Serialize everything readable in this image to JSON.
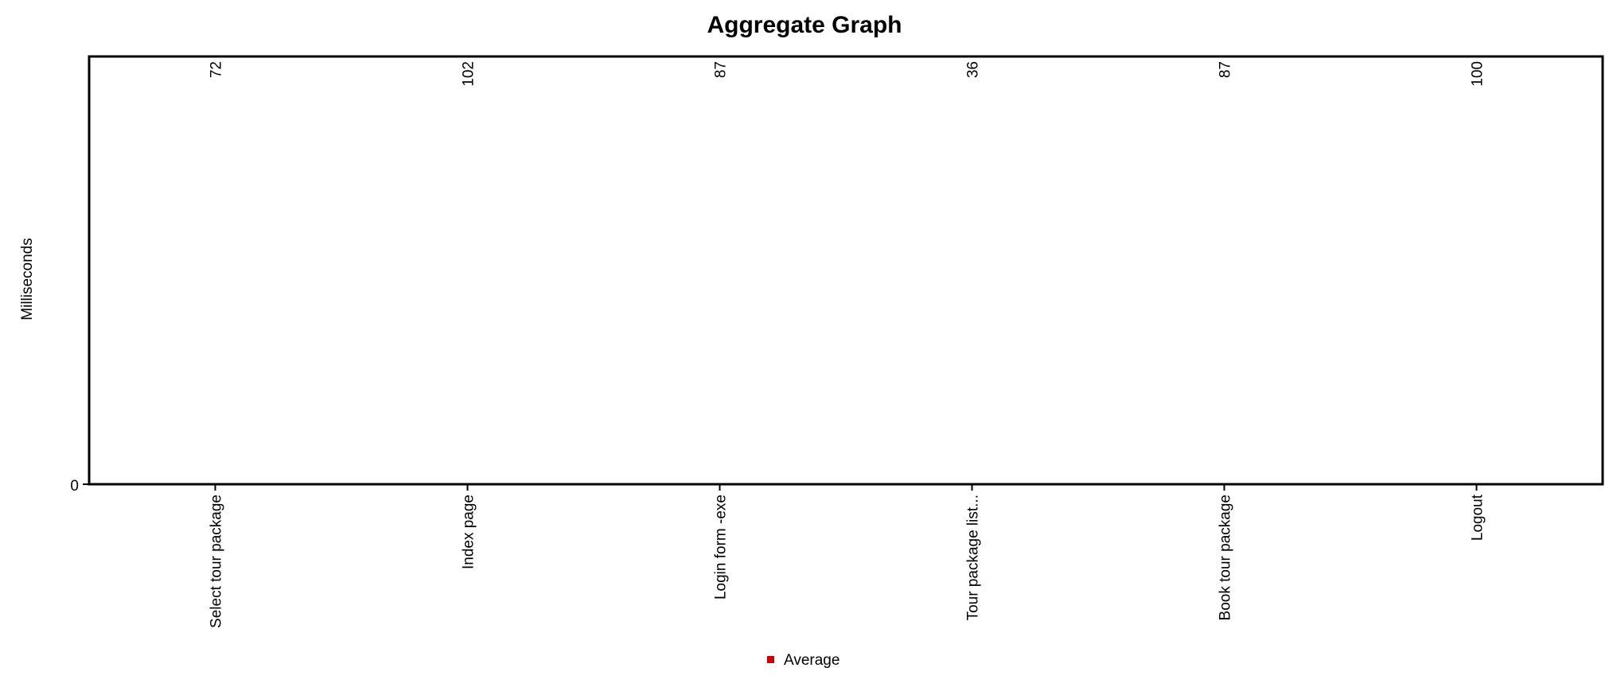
{
  "chart_data": {
    "type": "bar",
    "title": "Aggregate Graph",
    "xlabel": "",
    "ylabel": "Milliseconds",
    "categories": [
      "Select tour package",
      "Index page",
      "Login form -exe",
      "Tour package list...",
      "Book tour package",
      "Logout"
    ],
    "series": [
      {
        "name": "Average",
        "color": "#cc0000",
        "values": [
          72,
          102,
          87,
          36,
          87,
          100
        ]
      }
    ],
    "y_ticks": [
      "0"
    ],
    "legend_position": "bottom",
    "grid": false
  }
}
